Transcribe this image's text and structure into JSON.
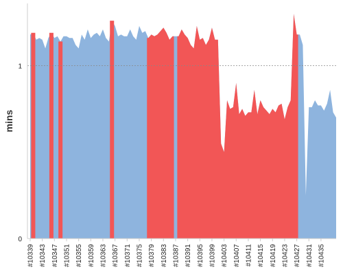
{
  "chart_data": {
    "type": "area",
    "xlabel": "",
    "ylabel": "mins",
    "ylim": [
      0,
      1.36
    ],
    "y_ticks": [
      0,
      1
    ],
    "reference_line": 1,
    "grid": false,
    "colors": {
      "normal": "#8eb4de",
      "highlight": "#f25656",
      "reference": "#888888",
      "axis": "#cccccc"
    },
    "x_start": 10339,
    "x_tick_labels": [
      "#10339",
      "#10343",
      "#10347",
      "#10351",
      "#10355",
      "#10359",
      "#10363",
      "#10367",
      "#10371",
      "#10375",
      "#10379",
      "#10383",
      "#10387",
      "#10391",
      "#10395",
      "#10399",
      "#10403",
      "#10407",
      "#10411",
      "#10415",
      "#10419",
      "#10423",
      "#10427",
      "#10431",
      "#10435"
    ],
    "values": [
      1.18,
      1.19,
      1.15,
      1.16,
      1.15,
      1.1,
      1.16,
      1.19,
      1.16,
      1.17,
      1.14,
      1.17,
      1.17,
      1.16,
      1.16,
      1.12,
      1.1,
      1.18,
      1.15,
      1.21,
      1.16,
      1.18,
      1.19,
      1.17,
      1.21,
      1.16,
      1.14,
      1.26,
      1.23,
      1.17,
      1.18,
      1.17,
      1.17,
      1.21,
      1.17,
      1.15,
      1.23,
      1.19,
      1.2,
      1.16,
      1.18,
      1.17,
      1.18,
      1.2,
      1.22,
      1.19,
      1.15,
      1.17,
      1.17,
      1.17,
      1.21,
      1.18,
      1.16,
      1.12,
      1.1,
      1.23,
      1.15,
      1.16,
      1.12,
      1.15,
      1.22,
      1.15,
      1.15,
      0.55,
      0.5,
      0.8,
      0.75,
      0.76,
      0.9,
      0.72,
      0.75,
      0.71,
      0.73,
      0.73,
      0.86,
      0.72,
      0.8,
      0.76,
      0.74,
      0.72,
      0.75,
      0.73,
      0.77,
      0.78,
      0.69,
      0.76,
      0.8,
      1.3,
      1.18,
      1.18,
      1.12,
      0.25,
      0.76,
      0.76,
      0.8,
      0.77,
      0.77,
      0.74,
      0.78,
      0.86,
      0.73,
      0.7
    ],
    "highlighted": [
      10340,
      10346,
      10349,
      10366,
      10378,
      10379,
      10380,
      10381,
      10382,
      10383,
      10384,
      10385,
      10386,
      10388,
      10389,
      10390,
      10391,
      10392,
      10393,
      10394,
      10395,
      10396,
      10397,
      10398,
      10399,
      10400,
      10401,
      10402,
      10403,
      10404,
      10405,
      10406,
      10407,
      10408,
      10409,
      10410,
      10411,
      10412,
      10413,
      10414,
      10415,
      10416,
      10417,
      10418,
      10419,
      10420,
      10421,
      10422,
      10423,
      10424,
      10425,
      10426,
      10427
    ]
  }
}
